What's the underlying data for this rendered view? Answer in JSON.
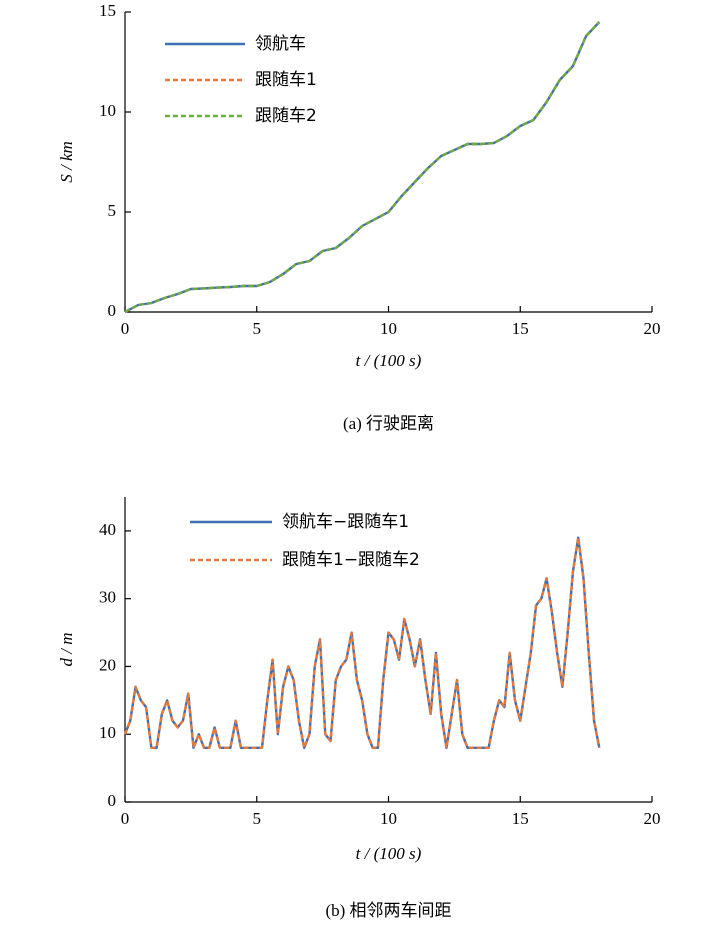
{
  "chart_data": [
    {
      "type": "line",
      "caption": "(a) 行驶距离",
      "xlabel": "t / (100 s)",
      "ylabel": "S / km",
      "x": [
        0,
        0.5,
        1,
        1.5,
        2,
        2.5,
        3,
        3.5,
        4,
        4.5,
        5,
        5.5,
        6,
        6.5,
        7,
        7.5,
        8,
        8.5,
        9,
        9.5,
        10,
        10.5,
        11,
        11.5,
        12,
        12.5,
        13,
        13.5,
        14,
        14.5,
        15,
        15.5,
        16,
        16.5,
        17,
        17.5,
        18
      ],
      "series": [
        {
          "name": "领航车",
          "color": "#3f6fb5",
          "dashed": false,
          "values": [
            0,
            0.35,
            0.45,
            0.7,
            0.9,
            1.15,
            1.18,
            1.22,
            1.25,
            1.3,
            1.3,
            1.5,
            1.9,
            2.4,
            2.55,
            3.05,
            3.2,
            3.7,
            4.3,
            4.65,
            5.0,
            5.8,
            6.5,
            7.2,
            7.8,
            8.1,
            8.4,
            8.4,
            8.45,
            8.8,
            9.3,
            9.6,
            10.5,
            11.6,
            12.3,
            13.8,
            14.5
          ]
        },
        {
          "name": "跟随车1",
          "color": "#e5793c",
          "dashed": true,
          "values": [
            0,
            0.35,
            0.45,
            0.7,
            0.9,
            1.15,
            1.18,
            1.22,
            1.25,
            1.3,
            1.3,
            1.5,
            1.9,
            2.4,
            2.55,
            3.05,
            3.2,
            3.7,
            4.3,
            4.65,
            5.0,
            5.8,
            6.5,
            7.2,
            7.8,
            8.1,
            8.4,
            8.4,
            8.45,
            8.8,
            9.3,
            9.6,
            10.5,
            11.6,
            12.3,
            13.8,
            14.5
          ]
        },
        {
          "name": "跟随车2",
          "color": "#6aad45",
          "dashed": true,
          "values": [
            0,
            0.35,
            0.45,
            0.7,
            0.9,
            1.15,
            1.18,
            1.22,
            1.25,
            1.3,
            1.3,
            1.5,
            1.9,
            2.4,
            2.55,
            3.05,
            3.2,
            3.7,
            4.3,
            4.65,
            5.0,
            5.8,
            6.5,
            7.2,
            7.8,
            8.1,
            8.4,
            8.4,
            8.45,
            8.8,
            9.3,
            9.6,
            10.5,
            11.6,
            12.3,
            13.8,
            14.5
          ]
        }
      ],
      "xlim": [
        0,
        20
      ],
      "xticks": [
        0,
        5,
        10,
        15,
        20
      ],
      "ylim": [
        0,
        15
      ],
      "yticks": [
        0,
        5,
        10,
        15
      ],
      "legend": "upper left"
    },
    {
      "type": "line",
      "caption": "(b) 相邻两车间距",
      "xlabel": "t / (100 s)",
      "ylabel": "d / m",
      "x": [
        0,
        0.2,
        0.4,
        0.6,
        0.8,
        1.0,
        1.2,
        1.4,
        1.6,
        1.8,
        2.0,
        2.2,
        2.4,
        2.6,
        2.8,
        3.0,
        3.2,
        3.4,
        3.6,
        3.8,
        4.0,
        4.2,
        4.4,
        4.6,
        4.8,
        5.0,
        5.2,
        5.4,
        5.6,
        5.8,
        6.0,
        6.2,
        6.4,
        6.6,
        6.8,
        7.0,
        7.2,
        7.4,
        7.6,
        7.8,
        8.0,
        8.2,
        8.4,
        8.6,
        8.8,
        9.0,
        9.2,
        9.4,
        9.6,
        9.8,
        10.0,
        10.2,
        10.4,
        10.6,
        10.8,
        11.0,
        11.2,
        11.4,
        11.6,
        11.8,
        12.0,
        12.2,
        12.4,
        12.6,
        12.8,
        13.0,
        13.2,
        13.4,
        13.6,
        13.8,
        14.0,
        14.2,
        14.4,
        14.6,
        14.8,
        15.0,
        15.2,
        15.4,
        15.6,
        15.8,
        16.0,
        16.2,
        16.4,
        16.6,
        16.8,
        17.0,
        17.2,
        17.4,
        17.6,
        17.8,
        18.0
      ],
      "series": [
        {
          "name": "领航车−跟随车1",
          "color": "#3f6fb5",
          "dashed": false,
          "values": [
            10,
            12,
            17,
            15,
            14,
            8,
            8,
            13,
            15,
            12,
            11,
            12,
            16,
            8,
            10,
            8,
            8,
            11,
            8,
            8,
            8,
            12,
            8,
            8,
            8,
            8,
            8,
            15,
            21,
            10,
            17,
            20,
            18,
            12,
            8,
            10,
            20,
            24,
            10,
            9,
            18,
            20,
            21,
            25,
            18,
            15,
            10,
            8,
            8,
            18,
            25,
            24,
            21,
            27,
            24,
            20,
            24,
            18,
            13,
            22,
            13,
            8,
            13,
            18,
            10,
            8,
            8,
            8,
            8,
            8,
            12,
            15,
            14,
            22,
            15,
            12,
            17,
            22,
            29,
            30,
            33,
            28,
            22,
            17,
            25,
            34,
            39,
            33,
            22,
            12,
            8
          ]
        },
        {
          "name": "跟随车1−跟随车2",
          "color": "#e5793c",
          "dashed": true,
          "values": [
            10,
            12,
            17,
            15,
            14,
            8,
            8,
            13,
            15,
            12,
            11,
            12,
            16,
            8,
            10,
            8,
            8,
            11,
            8,
            8,
            8,
            12,
            8,
            8,
            8,
            8,
            8,
            15,
            21,
            10,
            17,
            20,
            18,
            12,
            8,
            10,
            20,
            24,
            10,
            9,
            18,
            20,
            21,
            25,
            18,
            15,
            10,
            8,
            8,
            18,
            25,
            24,
            21,
            27,
            24,
            20,
            24,
            18,
            13,
            22,
            13,
            8,
            13,
            18,
            10,
            8,
            8,
            8,
            8,
            8,
            12,
            15,
            14,
            22,
            15,
            12,
            17,
            22,
            29,
            30,
            33,
            28,
            22,
            17,
            25,
            34,
            39,
            33,
            22,
            12,
            8
          ]
        }
      ],
      "xlim": [
        0,
        20
      ],
      "xticks": [
        0,
        5,
        10,
        15,
        20
      ],
      "ylim": [
        0,
        45
      ],
      "yticks": [
        0,
        10,
        20,
        30,
        40
      ],
      "legend": "upper left"
    }
  ]
}
